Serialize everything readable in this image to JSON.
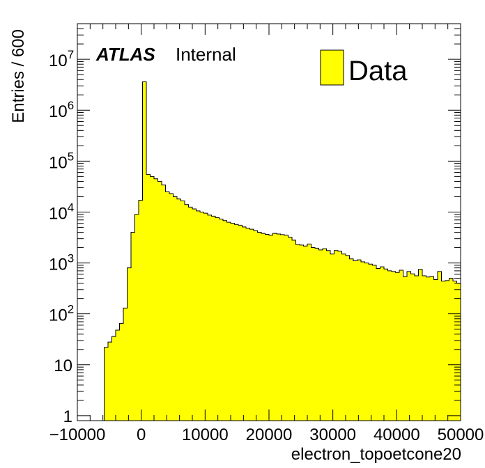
{
  "chart_data": {
    "type": "histogram",
    "label_atlas": "ATLAS",
    "label_status": "Internal",
    "xlabel": "electron_topoetcone20",
    "ylabel": "Entries / 600",
    "xlim": [
      -10000,
      50000
    ],
    "ylim": [
      0.8,
      50000000
    ],
    "yscale": "log",
    "bin_width": 600,
    "x_ticks": [
      -10000,
      0,
      10000,
      20000,
      30000,
      40000,
      50000
    ],
    "x_tick_labels": [
      "−10000",
      "0",
      "10000",
      "20000",
      "30000",
      "40000",
      "50000"
    ],
    "y_ticks": [
      1,
      10,
      100,
      1000,
      10000,
      100000,
      1000000,
      10000000
    ],
    "y_tick_labels": [
      "1",
      "10",
      "10^2",
      "10^3",
      "10^4",
      "10^5",
      "10^6",
      "10^7"
    ],
    "fill_color": "#ffff00",
    "line_color": "#000000",
    "series": [
      {
        "name": "Data",
        "bin_start": -5800,
        "values": [
          22,
          28,
          36,
          48,
          65,
          130,
          800,
          4000,
          9000,
          17000,
          3600000,
          55000,
          50000,
          45000,
          40000,
          34000,
          25000,
          23000,
          20000,
          18000,
          16500,
          14000,
          12500,
          11500,
          10500,
          10000,
          9500,
          8700,
          8300,
          7800,
          7300,
          6800,
          6300,
          6000,
          5700,
          5500,
          5100,
          4800,
          4600,
          4300,
          4000,
          3800,
          3650,
          3500,
          3800,
          3700,
          3600,
          3500,
          3200,
          2800,
          2300,
          2250,
          2150,
          2350,
          2000,
          1950,
          1800,
          1900,
          1750,
          1500,
          1750,
          1700,
          1500,
          1400,
          1200,
          1100,
          1150,
          1050,
          1000,
          950,
          900,
          780,
          840,
          760,
          700,
          680,
          650,
          720,
          540,
          680,
          610,
          560,
          750,
          560,
          530,
          540,
          470,
          680,
          440,
          450,
          500,
          440,
          400,
          420,
          380,
          420,
          360,
          420,
          380,
          360
        ]
      }
    ],
    "legend": {
      "position": "top-right",
      "entries": [
        "Data"
      ]
    }
  }
}
